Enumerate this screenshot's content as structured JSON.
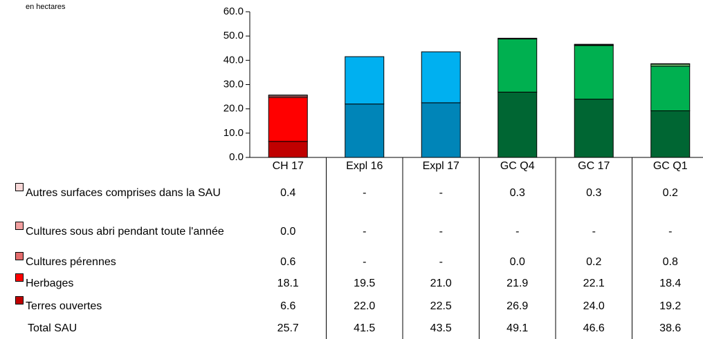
{
  "chart_data": {
    "type": "stacked_bar",
    "unit_note": "en hectares",
    "categories": [
      "CH 17",
      "Expl 16",
      "Expl 17",
      "GC Q4",
      "GC 17",
      "GC Q1"
    ],
    "ylim": [
      0,
      60
    ],
    "yticks": [
      {
        "value": 0,
        "label": "0.0"
      },
      {
        "value": 10,
        "label": "10.0"
      },
      {
        "value": 20,
        "label": "20.0"
      },
      {
        "value": 30,
        "label": "30.0"
      },
      {
        "value": 40,
        "label": "40.0"
      },
      {
        "value": 50,
        "label": "50.0"
      },
      {
        "value": 60,
        "label": "60.0"
      }
    ],
    "series": [
      {
        "name": "Terres ouvertes",
        "color": "#c00000",
        "colors": [
          "#c00000",
          "#0085b8",
          "#0085b8",
          "#006633",
          "#006633",
          "#006633"
        ],
        "values": [
          6.6,
          22.0,
          22.5,
          26.9,
          24.0,
          19.2
        ],
        "value_labels": [
          "6.6",
          "22.0",
          "22.5",
          "26.9",
          "24.0",
          "19.2"
        ]
      },
      {
        "name": "Herbages",
        "color": "#ff0000",
        "colors": [
          "#ff0000",
          "#00b0f0",
          "#00b0f0",
          "#00b050",
          "#00b050",
          "#00b050"
        ],
        "values": [
          18.1,
          19.5,
          21.0,
          21.9,
          22.1,
          18.4
        ],
        "value_labels": [
          "18.1",
          "19.5",
          "21.0",
          "21.9",
          "22.1",
          "18.4"
        ]
      },
      {
        "name": "Cultures pérennes",
        "color": "#e46c6c",
        "colors": [
          "#e46c6c",
          "#66c8f0",
          "#66c8f0",
          "#7fd07f",
          "#7fd07f",
          "#7fd07f"
        ],
        "values": [
          0.6,
          null,
          null,
          0.0,
          0.2,
          0.8
        ],
        "value_labels": [
          "0.6",
          "-",
          "-",
          "0.0",
          "0.2",
          "0.8"
        ]
      },
      {
        "name": "Cultures sous abri pendant toute l'année",
        "color": "#f2a0a0",
        "colors": [
          "#f2a0a0",
          "#a0dcf5",
          "#a0dcf5",
          "#b0e0b0",
          "#b0e0b0",
          "#b0e0b0"
        ],
        "values": [
          0.0,
          null,
          null,
          null,
          null,
          null
        ],
        "value_labels": [
          "0.0",
          "-",
          "-",
          "-",
          "-",
          "-"
        ]
      },
      {
        "name": "Autres surfaces comprises dans la SAU",
        "color": "#f8d8d8",
        "colors": [
          "#f8d8d8",
          "#d0eefa",
          "#d0eefa",
          "#e0f2e0",
          "#e0f2e0",
          "#e0f2e0"
        ],
        "values": [
          0.4,
          null,
          null,
          0.3,
          0.3,
          0.2
        ],
        "value_labels": [
          "0.4",
          "-",
          "-",
          "0.3",
          "0.3",
          "0.2"
        ]
      }
    ],
    "total_label": "Total SAU",
    "totals": [
      25.7,
      41.5,
      43.5,
      49.1,
      46.6,
      38.6
    ],
    "total_labels": [
      "25.7",
      "41.5",
      "43.5",
      "49.1",
      "46.6",
      "38.6"
    ]
  }
}
